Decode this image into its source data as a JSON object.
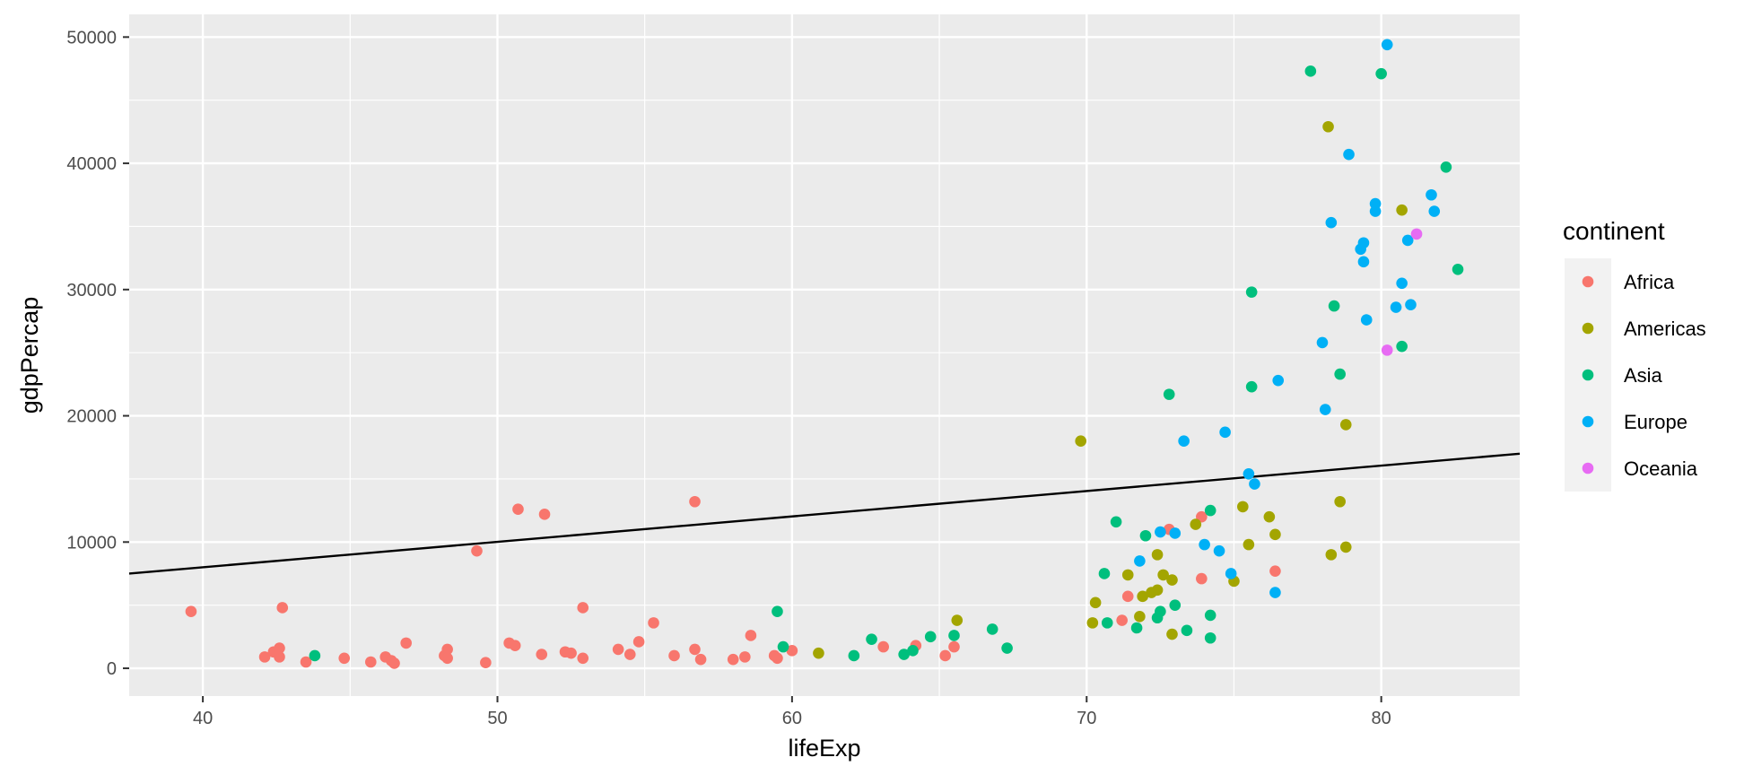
{
  "chart_data": {
    "type": "scatter",
    "xlabel": "lifeExp",
    "ylabel": "gdpPercap",
    "xlim": [
      37.5,
      84.7
    ],
    "ylim": [
      -2200,
      51800
    ],
    "x_ticks": [
      40,
      50,
      60,
      70,
      80
    ],
    "y_ticks": [
      0,
      10000,
      20000,
      30000,
      40000,
      50000
    ],
    "x_tick_labels": [
      "40",
      "50",
      "60",
      "70",
      "80"
    ],
    "y_tick_labels": [
      "0",
      "10000",
      "20000",
      "30000",
      "40000",
      "50000"
    ],
    "grid": true,
    "legend": {
      "title": "continent",
      "position": "right"
    },
    "trend_line": {
      "x": [
        37.5,
        84.7
      ],
      "y": [
        7500,
        17000
      ]
    },
    "series": [
      {
        "name": "Africa",
        "color": "#F8766D",
        "points": [
          [
            39.6,
            4500
          ],
          [
            42.1,
            900
          ],
          [
            42.4,
            1300
          ],
          [
            42.6,
            1600
          ],
          [
            42.6,
            900
          ],
          [
            42.7,
            4800
          ],
          [
            43.5,
            500
          ],
          [
            44.8,
            800
          ],
          [
            45.7,
            500
          ],
          [
            46.2,
            900
          ],
          [
            46.4,
            600
          ],
          [
            46.5,
            400
          ],
          [
            46.9,
            2000
          ],
          [
            48.2,
            1000
          ],
          [
            48.3,
            1500
          ],
          [
            48.3,
            800
          ],
          [
            49.3,
            9300
          ],
          [
            49.6,
            450
          ],
          [
            50.4,
            2000
          ],
          [
            50.6,
            1800
          ],
          [
            50.7,
            12600
          ],
          [
            51.5,
            1100
          ],
          [
            51.6,
            12200
          ],
          [
            52.3,
            1300
          ],
          [
            52.5,
            1200
          ],
          [
            52.9,
            4800
          ],
          [
            52.9,
            800
          ],
          [
            54.1,
            1500
          ],
          [
            54.5,
            1100
          ],
          [
            54.8,
            2100
          ],
          [
            55.3,
            3600
          ],
          [
            56.0,
            1000
          ],
          [
            56.7,
            1500
          ],
          [
            56.7,
            13200
          ],
          [
            56.9,
            700
          ],
          [
            58.0,
            700
          ],
          [
            58.4,
            900
          ],
          [
            58.6,
            2600
          ],
          [
            59.4,
            1000
          ],
          [
            59.5,
            800
          ],
          [
            60.0,
            1400
          ],
          [
            63.1,
            1700
          ],
          [
            64.2,
            1800
          ],
          [
            65.2,
            1000
          ],
          [
            65.5,
            1700
          ],
          [
            71.2,
            3800
          ],
          [
            71.4,
            5700
          ],
          [
            72.8,
            11000
          ],
          [
            73.9,
            7100
          ],
          [
            73.9,
            12000
          ],
          [
            76.4,
            7700
          ]
        ]
      },
      {
        "name": "Americas",
        "color": "#A3A500",
        "points": [
          [
            60.9,
            1200
          ],
          [
            65.6,
            3800
          ],
          [
            69.8,
            18000
          ],
          [
            70.2,
            3600
          ],
          [
            70.3,
            5200
          ],
          [
            71.4,
            7400
          ],
          [
            71.8,
            4100
          ],
          [
            71.9,
            5700
          ],
          [
            72.2,
            6000
          ],
          [
            72.4,
            6200
          ],
          [
            72.4,
            9000
          ],
          [
            72.6,
            7400
          ],
          [
            72.9,
            2700
          ],
          [
            72.9,
            7000
          ],
          [
            73.7,
            11400
          ],
          [
            75.0,
            6900
          ],
          [
            75.3,
            12800
          ],
          [
            75.5,
            9800
          ],
          [
            76.2,
            12000
          ],
          [
            76.4,
            10600
          ],
          [
            78.2,
            42900
          ],
          [
            78.3,
            9000
          ],
          [
            78.6,
            13200
          ],
          [
            78.8,
            19300
          ],
          [
            78.8,
            9600
          ],
          [
            80.7,
            36300
          ]
        ]
      },
      {
        "name": "Asia",
        "color": "#00BF7D",
        "points": [
          [
            43.8,
            1000
          ],
          [
            59.5,
            4500
          ],
          [
            59.7,
            1700
          ],
          [
            62.1,
            1000
          ],
          [
            62.7,
            2300
          ],
          [
            63.8,
            1100
          ],
          [
            64.1,
            1400
          ],
          [
            64.7,
            2500
          ],
          [
            65.5,
            2600
          ],
          [
            66.8,
            3100
          ],
          [
            67.3,
            1600
          ],
          [
            70.6,
            7500
          ],
          [
            70.7,
            3600
          ],
          [
            71.0,
            11600
          ],
          [
            71.7,
            3200
          ],
          [
            72.0,
            10500
          ],
          [
            72.4,
            4000
          ],
          [
            72.5,
            4500
          ],
          [
            72.8,
            21700
          ],
          [
            73.0,
            5000
          ],
          [
            73.4,
            3000
          ],
          [
            74.2,
            4200
          ],
          [
            74.2,
            2400
          ],
          [
            74.2,
            12500
          ],
          [
            75.6,
            29800
          ],
          [
            75.6,
            22300
          ],
          [
            77.6,
            47300
          ],
          [
            78.4,
            28700
          ],
          [
            78.6,
            23300
          ],
          [
            80.0,
            47100
          ],
          [
            80.7,
            25500
          ],
          [
            82.2,
            39700
          ],
          [
            82.6,
            31600
          ]
        ]
      },
      {
        "name": "Europe",
        "color": "#00B0F6",
        "points": [
          [
            71.8,
            8500
          ],
          [
            72.5,
            10800
          ],
          [
            73.0,
            10700
          ],
          [
            73.3,
            18000
          ],
          [
            74.0,
            9800
          ],
          [
            74.5,
            9300
          ],
          [
            74.7,
            18700
          ],
          [
            74.9,
            7500
          ],
          [
            75.5,
            15400
          ],
          [
            75.7,
            14600
          ],
          [
            76.4,
            6000
          ],
          [
            76.5,
            22800
          ],
          [
            78.0,
            25800
          ],
          [
            78.1,
            20500
          ],
          [
            78.3,
            35300
          ],
          [
            78.9,
            40700
          ],
          [
            79.3,
            33200
          ],
          [
            79.4,
            33700
          ],
          [
            79.4,
            32200
          ],
          [
            79.5,
            27600
          ],
          [
            79.8,
            36800
          ],
          [
            79.8,
            36200
          ],
          [
            80.2,
            49400
          ],
          [
            80.5,
            28600
          ],
          [
            80.7,
            30500
          ],
          [
            80.9,
            33900
          ],
          [
            81.0,
            28800
          ],
          [
            81.7,
            37500
          ],
          [
            81.8,
            36200
          ]
        ]
      },
      {
        "name": "Oceania",
        "color": "#E76BF3",
        "points": [
          [
            80.2,
            25200
          ],
          [
            81.2,
            34400
          ]
        ]
      }
    ]
  }
}
